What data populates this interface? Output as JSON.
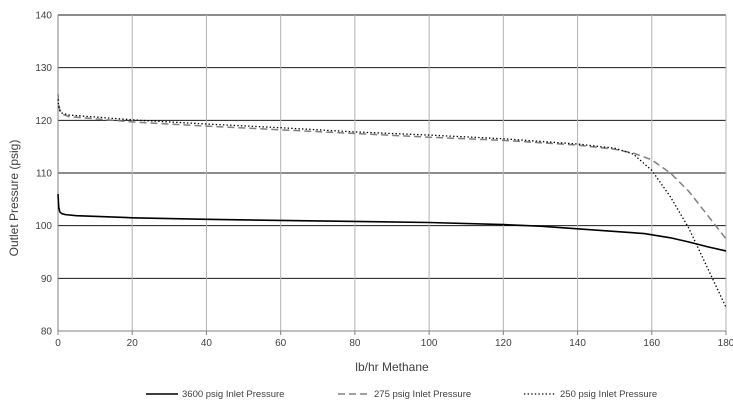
{
  "chart_data": {
    "type": "line",
    "title": "",
    "xlabel": "lb/hr Methane",
    "ylabel": "Outlet Pressure (psig)",
    "xlim": [
      0,
      180
    ],
    "ylim": [
      80,
      140
    ],
    "x_ticks": [
      "0",
      "20",
      "40",
      "60",
      "80",
      "100",
      "120",
      "140",
      "160",
      "180"
    ],
    "y_ticks": [
      "80",
      "90",
      "100",
      "110",
      "120",
      "130",
      "140"
    ],
    "grid": true,
    "legend_position": "bottom",
    "series": [
      {
        "name": "3600 psig Inlet Pressure",
        "style": "solid",
        "color": "#000000",
        "points": [
          [
            0,
            106
          ],
          [
            0.2,
            103.5
          ],
          [
            0.5,
            102.6
          ],
          [
            1,
            102.3
          ],
          [
            2,
            102.1
          ],
          [
            5,
            101.9
          ],
          [
            20,
            101.5
          ],
          [
            40,
            101.2
          ],
          [
            60,
            101.0
          ],
          [
            80,
            100.8
          ],
          [
            100,
            100.6
          ],
          [
            120,
            100.2
          ],
          [
            130,
            99.9
          ],
          [
            140,
            99.4
          ],
          [
            150,
            98.9
          ],
          [
            158,
            98.5
          ],
          [
            165,
            97.7
          ],
          [
            170,
            96.9
          ],
          [
            175,
            96.0
          ],
          [
            180,
            95.2
          ]
        ]
      },
      {
        "name": "275 psig Inlet Pressure",
        "style": "dashed",
        "color": "#808080",
        "points": [
          [
            0,
            125
          ],
          [
            0.2,
            123
          ],
          [
            0.5,
            122
          ],
          [
            1,
            121.2
          ],
          [
            3,
            120.7
          ],
          [
            20,
            119.7
          ],
          [
            40,
            118.9
          ],
          [
            60,
            118.2
          ],
          [
            80,
            117.5
          ],
          [
            100,
            116.8
          ],
          [
            120,
            116.2
          ],
          [
            140,
            115.3
          ],
          [
            150,
            114.5
          ],
          [
            155,
            113.8
          ],
          [
            160,
            112.5
          ],
          [
            165,
            110.0
          ],
          [
            170,
            106.5
          ],
          [
            175,
            102.0
          ],
          [
            180,
            97.5
          ]
        ]
      },
      {
        "name": "250 psig Inlet Pressure",
        "style": "dotted",
        "color": "#000000",
        "points": [
          [
            0,
            124
          ],
          [
            0.2,
            122.5
          ],
          [
            0.5,
            121.8
          ],
          [
            1,
            121.4
          ],
          [
            3,
            121.0
          ],
          [
            20,
            120.1
          ],
          [
            40,
            119.3
          ],
          [
            60,
            118.6
          ],
          [
            80,
            117.8
          ],
          [
            100,
            117.2
          ],
          [
            120,
            116.5
          ],
          [
            140,
            115.5
          ],
          [
            150,
            114.7
          ],
          [
            155,
            113.6
          ],
          [
            160,
            110.5
          ],
          [
            165,
            105.5
          ],
          [
            170,
            99.5
          ],
          [
            175,
            92.0
          ],
          [
            180,
            84.5
          ]
        ]
      }
    ]
  }
}
